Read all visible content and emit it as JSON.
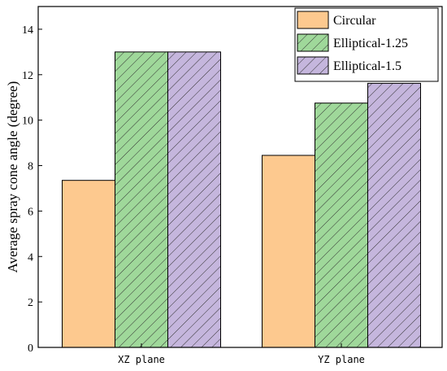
{
  "chart_data": {
    "type": "bar",
    "title": "",
    "xlabel": "",
    "ylabel": "Average spray cone angle (degree)",
    "categories": [
      "XZ plane",
      "YZ plane"
    ],
    "ylim": [
      0,
      15
    ],
    "yticks": [
      0,
      2,
      4,
      6,
      8,
      10,
      12,
      14
    ],
    "grid": false,
    "legend_position": "top-right",
    "series": [
      {
        "name": "Circular",
        "values": [
          7.35,
          8.45
        ],
        "color": "#fdc98f",
        "pattern": "none"
      },
      {
        "name": "Elliptical-1.25",
        "values": [
          13.0,
          10.75
        ],
        "color": "#9fd89a",
        "pattern": "hatch"
      },
      {
        "name": "Elliptical-1.5",
        "values": [
          13.0,
          11.62
        ],
        "color": "#c5b6dd",
        "pattern": "hatch"
      }
    ]
  }
}
